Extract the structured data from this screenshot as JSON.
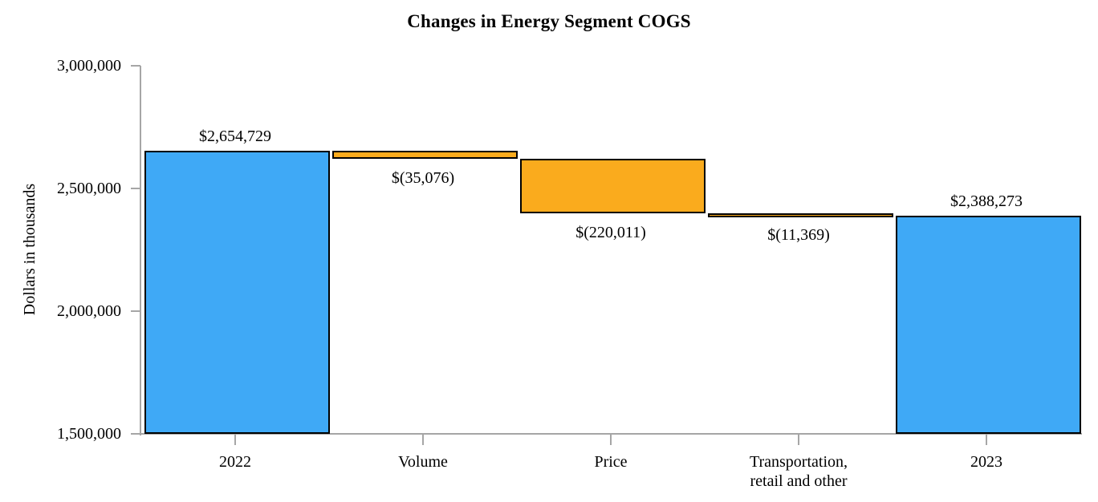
{
  "chart_data": {
    "type": "bar",
    "subtype": "waterfall",
    "title": "Changes in Energy Segment COGS",
    "xlabel": "",
    "ylabel": "Dollars in thousands",
    "ylim": [
      1500000,
      3000000
    ],
    "yticks": [
      {
        "value": 3000000,
        "label": "3,000,000"
      },
      {
        "value": 2500000,
        "label": "2,500,000"
      },
      {
        "value": 2000000,
        "label": "2,000,000"
      },
      {
        "value": 1500000,
        "label": "1,500,000"
      }
    ],
    "grid": false,
    "legend": false,
    "categories": [
      "2022",
      "Volume",
      "Price",
      "Transportation,\nretail and other",
      "2023"
    ],
    "bars": [
      {
        "category": "2022",
        "base": 1500000,
        "top": 2654729,
        "value": 2654729,
        "label": "$2,654,729",
        "label_position": "above",
        "color_role": "total"
      },
      {
        "category": "Volume",
        "base": 2619653,
        "top": 2654729,
        "value": -35076,
        "label": "$(35,076)",
        "label_position": "below",
        "color_role": "decrease"
      },
      {
        "category": "Price",
        "base": 2399642,
        "top": 2619653,
        "value": -220011,
        "label": "$(220,011)",
        "label_position": "below",
        "color_role": "decrease"
      },
      {
        "category": "Transportation,\nretail and other",
        "base": 2388273,
        "top": 2399642,
        "value": -11369,
        "label": "$(11,369)",
        "label_position": "below",
        "color_role": "decrease"
      },
      {
        "category": "2023",
        "base": 1500000,
        "top": 2388273,
        "value": 2388273,
        "label": "$2,388,273",
        "label_position": "above",
        "color_role": "total"
      }
    ],
    "colors": {
      "total": "#3FA9F6",
      "decrease": "#FAAB1D",
      "bar_border": "#000000",
      "axis": "#A6A6A6",
      "text": "#000000"
    }
  }
}
